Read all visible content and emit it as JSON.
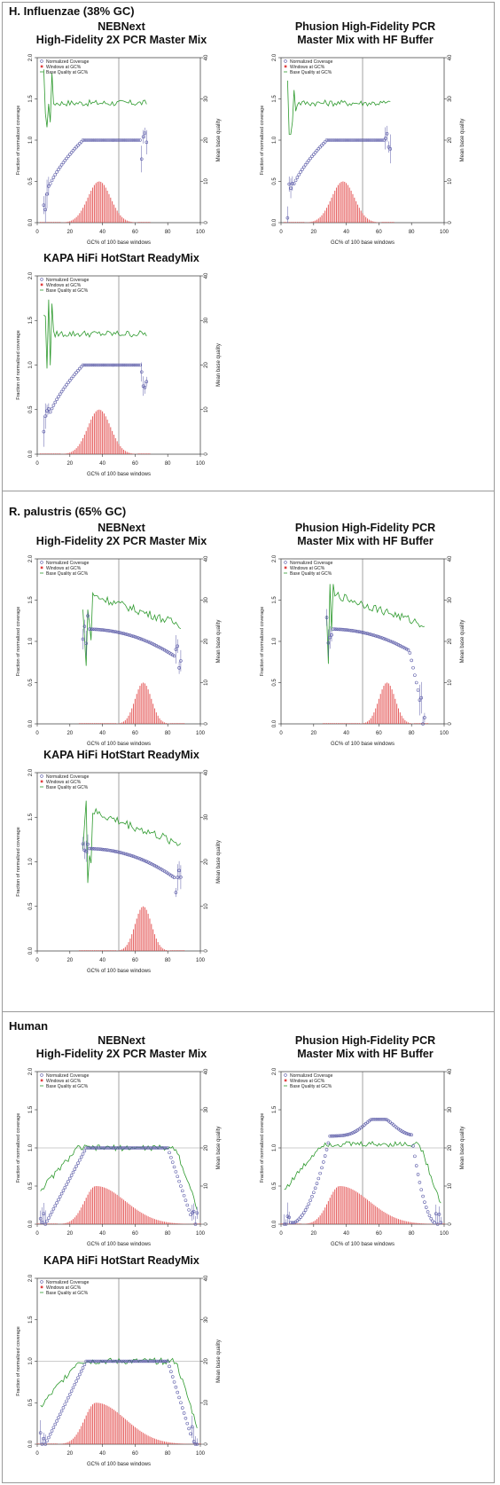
{
  "sections": [
    {
      "title": "H. Influenzae (38% GC)"
    },
    {
      "title": "R. palustris (65% GC)"
    },
    {
      "title": "Human"
    }
  ],
  "panel_titles": {
    "neb": [
      "NEBNext",
      "High-Fidelity 2X PCR Master Mix"
    ],
    "phu": [
      "Phusion High-Fidelity PCR",
      "Master Mix with HF Buffer"
    ],
    "kapa": [
      "KAPA HiFi HotStart ReadyMix"
    ]
  },
  "legend": {
    "normalized_coverage": "Normalized Coverage",
    "windows_at_gc": "Windows at GC%",
    "base_quality_at_gc": "Base Quality at GC%"
  },
  "axis_labels": {
    "xlabel": "GC% of 100 base windows",
    "ylabel_left": "Fraction of normalized coverage",
    "ylabel_right": "Mean base quality"
  },
  "colors": {
    "coverage": "#5c5ca8",
    "windows": "#e04040",
    "quality": "#2e9a2e",
    "guide": "#666666",
    "axis": "#333333"
  },
  "chart_data": [
    {
      "type": "scatter",
      "section": 0,
      "variant": "neb",
      "gc_center": 38,
      "gc_sd": 7,
      "gc_range": [
        4,
        67
      ],
      "ref_line_y": false,
      "xlim": [
        0,
        100
      ],
      "ylim": [
        0,
        2
      ],
      "y2lim": [
        0,
        40
      ],
      "xticks": [
        0,
        20,
        40,
        60,
        80,
        100
      ],
      "yticks": [
        0,
        0.5,
        1,
        1.5,
        2
      ],
      "y2ticks": [
        0,
        10,
        20,
        30,
        40
      ],
      "coverage_plateau": 1,
      "coverage_peak_x": null,
      "quality_level": 29,
      "windows_peak": 0.5,
      "vline_x": 50
    },
    {
      "type": "scatter",
      "section": 0,
      "variant": "phu",
      "gc_center": 38,
      "gc_sd": 7,
      "gc_range": [
        4,
        67
      ],
      "ref_line_y": false,
      "xlim": [
        0,
        100
      ],
      "ylim": [
        0,
        2
      ],
      "y2lim": [
        0,
        40
      ],
      "xticks": [
        0,
        20,
        40,
        60,
        80,
        100
      ],
      "yticks": [
        0,
        0.5,
        1,
        1.5,
        2
      ],
      "y2ticks": [
        0,
        10,
        20,
        30,
        40
      ],
      "coverage_plateau": 1,
      "coverage_peak_x": null,
      "quality_level": 29,
      "windows_peak": 0.5,
      "vline_x": 50
    },
    {
      "type": "scatter",
      "section": 0,
      "variant": "kapa",
      "gc_center": 38,
      "gc_sd": 7,
      "gc_range": [
        4,
        67
      ],
      "ref_line_y": false,
      "xlim": [
        0,
        100
      ],
      "ylim": [
        0,
        2
      ],
      "y2lim": [
        0,
        40
      ],
      "xticks": [
        0,
        20,
        40,
        60,
        80,
        100
      ],
      "yticks": [
        0,
        0.5,
        1,
        1.5,
        2
      ],
      "y2ticks": [
        0,
        10,
        20,
        30,
        40
      ],
      "coverage_plateau": 1,
      "coverage_peak_x": null,
      "quality_level": 27,
      "windows_peak": 0.5,
      "vline_x": 50
    },
    {
      "type": "scatter",
      "section": 1,
      "variant": "neb",
      "gc_center": 65,
      "gc_sd": 5,
      "gc_range": [
        28,
        88
      ],
      "ref_line_y": false,
      "xlim": [
        0,
        100
      ],
      "ylim": [
        0,
        2
      ],
      "y2lim": [
        0,
        40
      ],
      "xticks": [
        0,
        20,
        40,
        60,
        80,
        100
      ],
      "yticks": [
        0,
        0.5,
        1,
        1.5,
        2
      ],
      "y2ticks": [
        0,
        10,
        20,
        30,
        40
      ],
      "coverage_plateau": 1.05,
      "coverage_peak_x": null,
      "quality_level": 28,
      "windows_peak": 0.5,
      "vline_x": 50
    },
    {
      "type": "scatter",
      "section": 1,
      "variant": "phu",
      "gc_center": 65,
      "gc_sd": 5,
      "gc_range": [
        28,
        88
      ],
      "ref_line_y": false,
      "xlim": [
        0,
        100
      ],
      "ylim": [
        0,
        2
      ],
      "y2lim": [
        0,
        40
      ],
      "xticks": [
        0,
        20,
        40,
        60,
        80,
        100
      ],
      "yticks": [
        0,
        0.5,
        1,
        1.5,
        2
      ],
      "y2ticks": [
        0,
        10,
        20,
        30,
        40
      ],
      "coverage_plateau": 1.05,
      "coverage_peak_x": null,
      "quality_level": 28,
      "windows_peak": 0.5,
      "vline_x": 50
    },
    {
      "type": "scatter",
      "section": 1,
      "variant": "kapa",
      "gc_center": 65,
      "gc_sd": 5,
      "gc_range": [
        28,
        88
      ],
      "ref_line_y": false,
      "xlim": [
        0,
        100
      ],
      "ylim": [
        0,
        2
      ],
      "y2lim": [
        0,
        40
      ],
      "xticks": [
        0,
        20,
        40,
        60,
        80,
        100
      ],
      "yticks": [
        0,
        0.5,
        1,
        1.5,
        2
      ],
      "y2ticks": [
        0,
        10,
        20,
        30,
        40
      ],
      "coverage_plateau": 1.05,
      "coverage_peak_x": null,
      "quality_level": 28,
      "windows_peak": 0.5,
      "vline_x": 50
    },
    {
      "type": "scatter",
      "section": 2,
      "variant": "neb",
      "gc_center": 36,
      "gc_sd": 10,
      "gc_range": [
        2,
        98
      ],
      "ref_line_y": true,
      "xlim": [
        0,
        100
      ],
      "ylim": [
        0,
        2
      ],
      "y2lim": [
        0,
        40
      ],
      "xticks": [
        0,
        20,
        40,
        60,
        80,
        100
      ],
      "yticks": [
        0,
        0.5,
        1,
        1.5,
        2
      ],
      "y2ticks": [
        0,
        10,
        20,
        30,
        40
      ],
      "coverage_plateau": 1,
      "coverage_peak_x": null,
      "quality_level": 20,
      "windows_peak": 0.5,
      "vline_x": 50
    },
    {
      "type": "scatter",
      "section": 2,
      "variant": "phu",
      "gc_center": 36,
      "gc_sd": 10,
      "gc_range": [
        2,
        98
      ],
      "ref_line_y": true,
      "xlim": [
        0,
        100
      ],
      "ylim": [
        0,
        2
      ],
      "y2lim": [
        0,
        40
      ],
      "xticks": [
        0,
        20,
        40,
        60,
        80,
        100
      ],
      "yticks": [
        0,
        0.5,
        1,
        1.5,
        2
      ],
      "y2ticks": [
        0,
        10,
        20,
        30,
        40
      ],
      "coverage_plateau": 1.1,
      "coverage_peak_x": 60,
      "quality_level": 21,
      "windows_peak": 0.5,
      "vline_x": 50
    },
    {
      "type": "scatter",
      "section": 2,
      "variant": "kapa",
      "gc_center": 36,
      "gc_sd": 10,
      "gc_range": [
        2,
        98
      ],
      "ref_line_y": true,
      "xlim": [
        0,
        100
      ],
      "ylim": [
        0,
        2
      ],
      "y2lim": [
        0,
        40
      ],
      "xticks": [
        0,
        20,
        40,
        60,
        80,
        100
      ],
      "yticks": [
        0,
        0.5,
        1,
        1.5,
        2
      ],
      "y2ticks": [
        0,
        10,
        20,
        30,
        40
      ],
      "coverage_plateau": 1,
      "coverage_peak_x": null,
      "quality_level": 20,
      "windows_peak": 0.5,
      "vline_x": 50
    }
  ]
}
